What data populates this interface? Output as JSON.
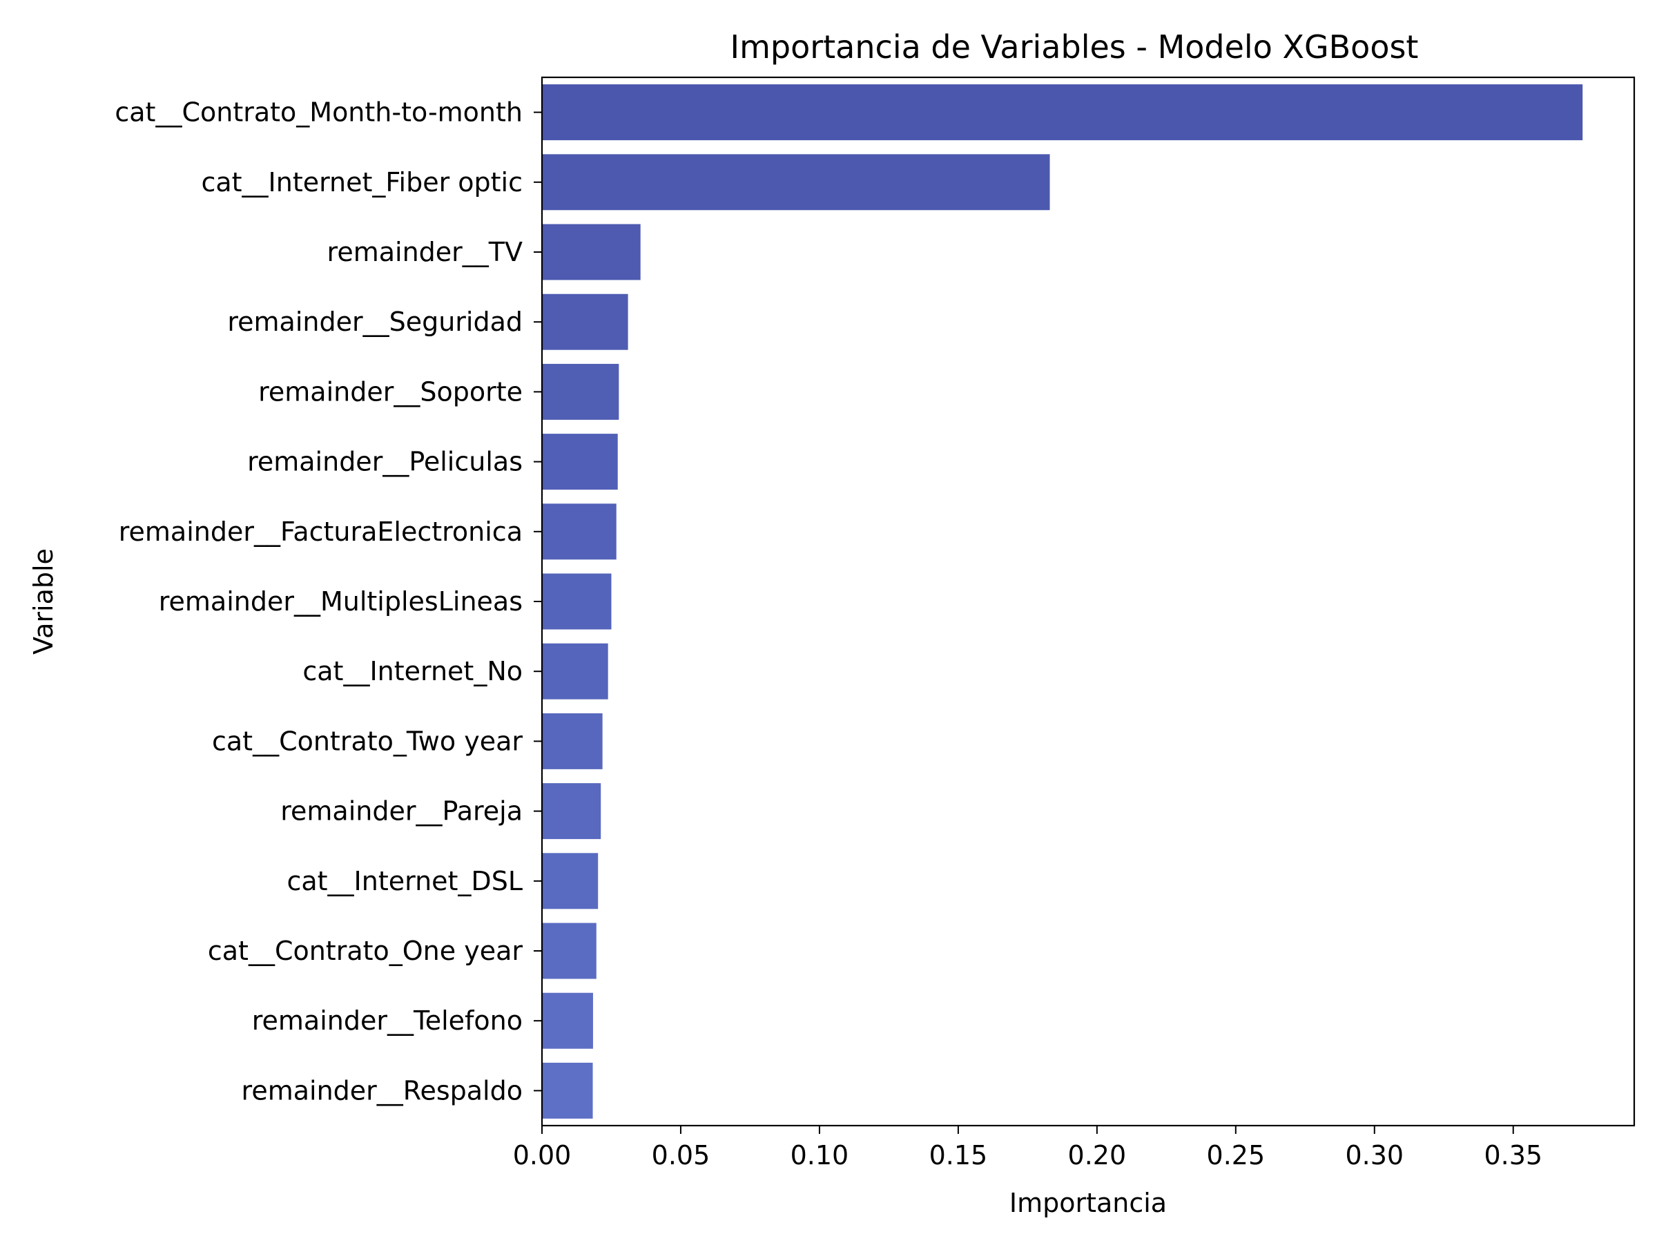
{
  "chart_data": {
    "type": "bar",
    "orientation": "horizontal",
    "title": "Importancia de Variables - Modelo XGBoost",
    "xlabel": "Importancia",
    "ylabel": "Variable",
    "categories": [
      "cat__Contrato_Month-to-month",
      "cat__Internet_Fiber optic",
      "remainder__TV",
      "remainder__Seguridad",
      "remainder__Soporte",
      "remainder__Peliculas",
      "remainder__FacturaElectronica",
      "remainder__MultiplesLineas",
      "cat__Internet_No",
      "cat__Contrato_Two year",
      "remainder__Pareja",
      "cat__Internet_DSL",
      "cat__Contrato_One year",
      "remainder__Telefono",
      "remainder__Respaldo"
    ],
    "values": [
      0.375,
      0.183,
      0.0355,
      0.031,
      0.0277,
      0.0273,
      0.0268,
      0.025,
      0.0238,
      0.0218,
      0.0212,
      0.0202,
      0.0196,
      0.0184,
      0.0183
    ],
    "xlim": [
      0,
      0.3936
    ],
    "xticks": [
      "0.00",
      "0.05",
      "0.10",
      "0.15",
      "0.20",
      "0.25",
      "0.30",
      "0.35"
    ],
    "grid": false,
    "colors": {
      "bar_top": "#4b57ad",
      "bar_bottom": "#5d70c6",
      "axis": "#000000"
    }
  }
}
